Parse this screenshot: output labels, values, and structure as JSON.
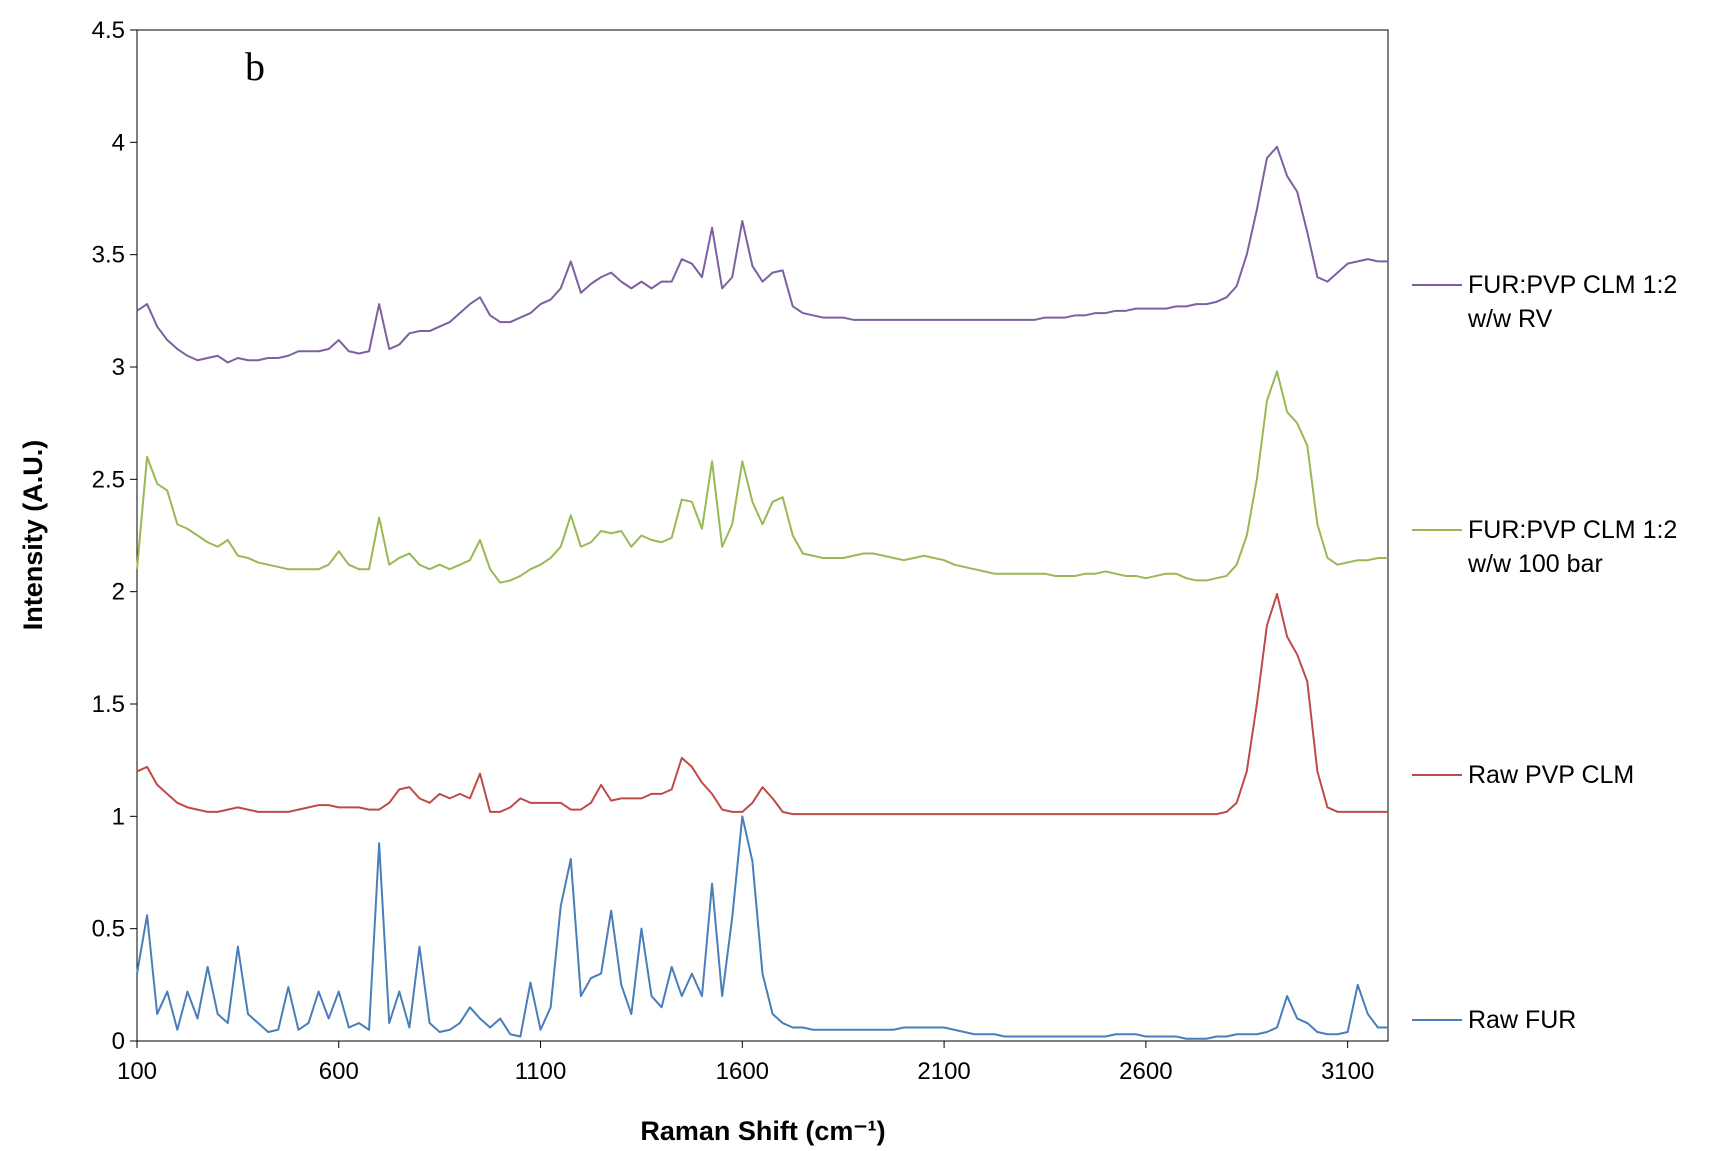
{
  "chart_data": {
    "type": "line",
    "annotation": "b",
    "x_label": "Raman Shift (cm⁻¹)",
    "y_label": "Intensity (A.U.)",
    "xlim": [
      100,
      3200
    ],
    "ylim": [
      0,
      4.5
    ],
    "xticks": [
      100,
      600,
      1100,
      1600,
      2100,
      2600,
      3100
    ],
    "yticks": [
      0,
      0.5,
      1,
      1.5,
      2,
      2.5,
      3,
      3.5,
      4,
      4.5
    ],
    "legend": "right",
    "x": [
      100,
      125,
      150,
      175,
      200,
      225,
      250,
      275,
      300,
      325,
      350,
      375,
      400,
      425,
      450,
      475,
      500,
      525,
      550,
      575,
      600,
      625,
      650,
      675,
      700,
      725,
      750,
      775,
      800,
      825,
      850,
      875,
      900,
      925,
      950,
      975,
      1000,
      1025,
      1050,
      1075,
      1100,
      1125,
      1150,
      1175,
      1200,
      1225,
      1250,
      1275,
      1300,
      1325,
      1350,
      1375,
      1400,
      1425,
      1450,
      1475,
      1500,
      1525,
      1550,
      1575,
      1600,
      1625,
      1650,
      1675,
      1700,
      1725,
      1750,
      1775,
      1800,
      1825,
      1850,
      1875,
      1900,
      1925,
      1950,
      1975,
      2000,
      2025,
      2050,
      2075,
      2100,
      2125,
      2150,
      2175,
      2200,
      2225,
      2250,
      2275,
      2300,
      2325,
      2350,
      2375,
      2400,
      2425,
      2450,
      2475,
      2500,
      2525,
      2550,
      2575,
      2600,
      2625,
      2650,
      2675,
      2700,
      2725,
      2750,
      2775,
      2800,
      2825,
      2850,
      2875,
      2900,
      2925,
      2950,
      2975,
      3000,
      3025,
      3050,
      3075,
      3100,
      3125,
      3150,
      3175,
      3200
    ],
    "series": [
      {
        "name": "Raw FUR",
        "color": "#4a7ebb",
        "values": [
          0.3,
          0.56,
          0.12,
          0.22,
          0.05,
          0.22,
          0.1,
          0.33,
          0.12,
          0.08,
          0.42,
          0.12,
          0.08,
          0.04,
          0.05,
          0.24,
          0.05,
          0.08,
          0.22,
          0.1,
          0.22,
          0.06,
          0.08,
          0.05,
          0.88,
          0.08,
          0.22,
          0.06,
          0.42,
          0.08,
          0.04,
          0.05,
          0.08,
          0.15,
          0.1,
          0.06,
          0.1,
          0.03,
          0.02,
          0.26,
          0.05,
          0.15,
          0.6,
          0.81,
          0.2,
          0.28,
          0.3,
          0.58,
          0.25,
          0.12,
          0.5,
          0.2,
          0.15,
          0.33,
          0.2,
          0.3,
          0.2,
          0.7,
          0.2,
          0.55,
          1.0,
          0.8,
          0.3,
          0.12,
          0.08,
          0.06,
          0.06,
          0.05,
          0.05,
          0.05,
          0.05,
          0.05,
          0.05,
          0.05,
          0.05,
          0.05,
          0.06,
          0.06,
          0.06,
          0.06,
          0.06,
          0.05,
          0.04,
          0.03,
          0.03,
          0.03,
          0.02,
          0.02,
          0.02,
          0.02,
          0.02,
          0.02,
          0.02,
          0.02,
          0.02,
          0.02,
          0.02,
          0.03,
          0.03,
          0.03,
          0.02,
          0.02,
          0.02,
          0.02,
          0.01,
          0.01,
          0.01,
          0.02,
          0.02,
          0.03,
          0.03,
          0.03,
          0.04,
          0.06,
          0.2,
          0.1,
          0.08,
          0.04,
          0.03,
          0.03,
          0.04,
          0.25,
          0.12,
          0.06,
          0.06
        ]
      },
      {
        "name": "Raw PVP CLM",
        "color": "#be4b48",
        "values": [
          1.2,
          1.22,
          1.14,
          1.1,
          1.06,
          1.04,
          1.03,
          1.02,
          1.02,
          1.03,
          1.04,
          1.03,
          1.02,
          1.02,
          1.02,
          1.02,
          1.03,
          1.04,
          1.05,
          1.05,
          1.04,
          1.04,
          1.04,
          1.03,
          1.03,
          1.06,
          1.12,
          1.13,
          1.08,
          1.06,
          1.1,
          1.08,
          1.1,
          1.08,
          1.19,
          1.02,
          1.02,
          1.04,
          1.08,
          1.06,
          1.06,
          1.06,
          1.06,
          1.03,
          1.03,
          1.06,
          1.14,
          1.07,
          1.08,
          1.08,
          1.08,
          1.1,
          1.1,
          1.12,
          1.26,
          1.22,
          1.15,
          1.1,
          1.03,
          1.02,
          1.02,
          1.06,
          1.13,
          1.08,
          1.02,
          1.01,
          1.01,
          1.01,
          1.01,
          1.01,
          1.01,
          1.01,
          1.01,
          1.01,
          1.01,
          1.01,
          1.01,
          1.01,
          1.01,
          1.01,
          1.01,
          1.01,
          1.01,
          1.01,
          1.01,
          1.01,
          1.01,
          1.01,
          1.01,
          1.01,
          1.01,
          1.01,
          1.01,
          1.01,
          1.01,
          1.01,
          1.01,
          1.01,
          1.01,
          1.01,
          1.01,
          1.01,
          1.01,
          1.01,
          1.01,
          1.01,
          1.01,
          1.01,
          1.02,
          1.06,
          1.2,
          1.5,
          1.85,
          1.99,
          1.8,
          1.72,
          1.6,
          1.2,
          1.04,
          1.02,
          1.02,
          1.02,
          1.02,
          1.02,
          1.02
        ]
      },
      {
        "name": "FUR:PVP CLM 1:2 w/w 100 bar",
        "color": "#98b954",
        "values": [
          2.1,
          2.6,
          2.48,
          2.45,
          2.3,
          2.28,
          2.25,
          2.22,
          2.2,
          2.23,
          2.16,
          2.15,
          2.13,
          2.12,
          2.11,
          2.1,
          2.1,
          2.1,
          2.1,
          2.12,
          2.18,
          2.12,
          2.1,
          2.1,
          2.33,
          2.12,
          2.15,
          2.17,
          2.12,
          2.1,
          2.12,
          2.1,
          2.12,
          2.14,
          2.23,
          2.1,
          2.04,
          2.05,
          2.07,
          2.1,
          2.12,
          2.15,
          2.2,
          2.34,
          2.2,
          2.22,
          2.27,
          2.26,
          2.27,
          2.2,
          2.25,
          2.23,
          2.22,
          2.24,
          2.41,
          2.4,
          2.28,
          2.58,
          2.2,
          2.3,
          2.58,
          2.4,
          2.3,
          2.4,
          2.42,
          2.25,
          2.17,
          2.16,
          2.15,
          2.15,
          2.15,
          2.16,
          2.17,
          2.17,
          2.16,
          2.15,
          2.14,
          2.15,
          2.16,
          2.15,
          2.14,
          2.12,
          2.11,
          2.1,
          2.09,
          2.08,
          2.08,
          2.08,
          2.08,
          2.08,
          2.08,
          2.07,
          2.07,
          2.07,
          2.08,
          2.08,
          2.09,
          2.08,
          2.07,
          2.07,
          2.06,
          2.07,
          2.08,
          2.08,
          2.06,
          2.05,
          2.05,
          2.06,
          2.07,
          2.12,
          2.25,
          2.5,
          2.85,
          2.98,
          2.8,
          2.75,
          2.65,
          2.3,
          2.15,
          2.12,
          2.13,
          2.14,
          2.14,
          2.15,
          2.15
        ]
      },
      {
        "name": "FUR:PVP CLM 1:2 w/w RV",
        "color": "#7d60a0",
        "values": [
          3.25,
          3.28,
          3.18,
          3.12,
          3.08,
          3.05,
          3.03,
          3.04,
          3.05,
          3.02,
          3.04,
          3.03,
          3.03,
          3.04,
          3.04,
          3.05,
          3.07,
          3.07,
          3.07,
          3.08,
          3.12,
          3.07,
          3.06,
          3.07,
          3.28,
          3.08,
          3.1,
          3.15,
          3.16,
          3.16,
          3.18,
          3.2,
          3.24,
          3.28,
          3.31,
          3.23,
          3.2,
          3.2,
          3.22,
          3.24,
          3.28,
          3.3,
          3.35,
          3.47,
          3.33,
          3.37,
          3.4,
          3.42,
          3.38,
          3.35,
          3.38,
          3.35,
          3.38,
          3.38,
          3.48,
          3.46,
          3.4,
          3.62,
          3.35,
          3.4,
          3.65,
          3.45,
          3.38,
          3.42,
          3.43,
          3.27,
          3.24,
          3.23,
          3.22,
          3.22,
          3.22,
          3.21,
          3.21,
          3.21,
          3.21,
          3.21,
          3.21,
          3.21,
          3.21,
          3.21,
          3.21,
          3.21,
          3.21,
          3.21,
          3.21,
          3.21,
          3.21,
          3.21,
          3.21,
          3.21,
          3.22,
          3.22,
          3.22,
          3.23,
          3.23,
          3.24,
          3.24,
          3.25,
          3.25,
          3.26,
          3.26,
          3.26,
          3.26,
          3.27,
          3.27,
          3.28,
          3.28,
          3.29,
          3.31,
          3.36,
          3.5,
          3.7,
          3.93,
          3.98,
          3.85,
          3.78,
          3.6,
          3.4,
          3.38,
          3.42,
          3.46,
          3.47,
          3.48,
          3.47,
          3.47
        ]
      }
    ]
  }
}
